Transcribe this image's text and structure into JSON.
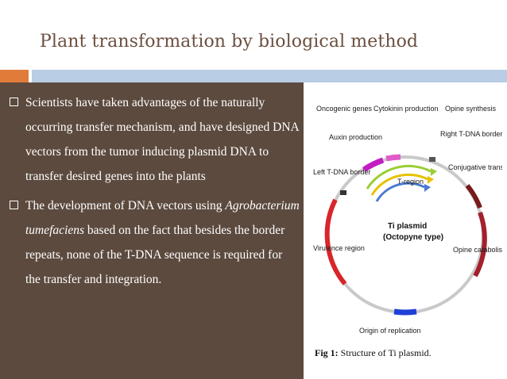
{
  "slide": {
    "title": "Plant transformation by biological method"
  },
  "bullets": [
    {
      "text": "Scientists have taken advantages of the naturally occurring transfer mechanism, and have designed DNA vectors from the tumor inducing plasmid DNA to transfer desired genes into the plants"
    },
    {
      "text_pre": "The development of DNA vectors using ",
      "text_italic": "Agrobacterium tumefaciens",
      "text_post": " based on the fact that besides the border repeats, none of the T-DNA sequence is required for the transfer and integration."
    }
  ],
  "figure": {
    "labels": {
      "oncogenic": "Oncogenic genes",
      "cytokinin": "Cytokinin production",
      "opine_synthesis": "Opine synthesis",
      "auxin": "Auxin production",
      "right_border": "Right T-DNA border",
      "left_border": "Left T-DNA border",
      "t_region": "T-region",
      "conjugative": "Conjugative transfer",
      "virulence": "Virulence region",
      "opine_catabolism": "Opine catabolism",
      "origin": "Origin of replication"
    },
    "center_line1": "Ti plasmid",
    "center_line2": "(Octopyne type)",
    "caption_bold": "Fig 1:",
    "caption_text": " Structure of Ti plasmid.",
    "colors": {
      "ring": "#c9c9c9",
      "virulence": "#d8262b",
      "opine_catabolism": "#a3202c",
      "conjugative": "#7a1a1a",
      "origin": "#1f3fd6",
      "oncogenic": "#c21cc2",
      "cytokinin": "#e05cc8",
      "opine_synthesis": "#c9c9c9",
      "t_arc_green": "#9acd32",
      "t_arc_yellow": "#e6c200",
      "t_arc_blue": "#4a7bd1"
    }
  }
}
